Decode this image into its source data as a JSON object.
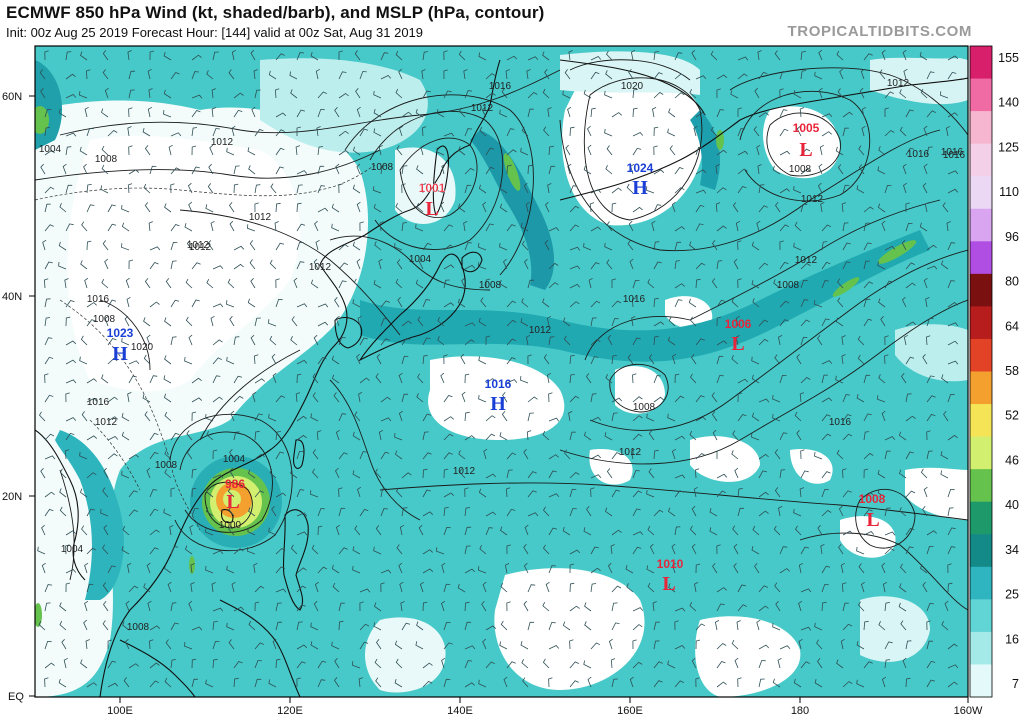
{
  "header": {
    "title": "ECMWF 850 hPa Wind (kt, shaded/barb), and MSLP (hPa, contour)",
    "subtitle": "Init: 00z Aug 25 2019   Forecast Hour: [144]   valid at 00z Sat, Aug 31 2019",
    "brand": "TROPICALTIDBITS.COM"
  },
  "axes": {
    "lat_labels": [
      "60N",
      "40N",
      "20N",
      "EQ"
    ],
    "lon_labels": [
      "100E",
      "120E",
      "140E",
      "160E",
      "180",
      "160W"
    ]
  },
  "colorbar": {
    "labels": [
      "155",
      "140",
      "125",
      "110",
      "96",
      "80",
      "64",
      "58",
      "52",
      "46",
      "40",
      "34",
      "25",
      "16",
      "7"
    ],
    "colors": [
      "#d81f6b",
      "#f06aa4",
      "#f7b6cf",
      "#f3d0e8",
      "#ead8f5",
      "#d9a4f0",
      "#b04ee3",
      "#7a1010",
      "#b81d1d",
      "#e24326",
      "#f3a02e",
      "#f6e457",
      "#d2ef6f",
      "#64c24d",
      "#1e9a6a",
      "#138a88",
      "#2fb5c0",
      "#61d4d6",
      "#a3eae9",
      "#e4fafa"
    ]
  },
  "systems": [
    {
      "type": "L",
      "value": "1001",
      "color": "#e8253a"
    },
    {
      "type": "H",
      "value": "1024",
      "color": "#1a3fd6"
    },
    {
      "type": "L",
      "value": "1005",
      "color": "#e8253a"
    },
    {
      "type": "H",
      "value": "1023",
      "color": "#1a3fd6"
    },
    {
      "type": "L",
      "value": "1006",
      "color": "#e8253a"
    },
    {
      "type": "H",
      "value": "1016",
      "color": "#1a3fd6"
    },
    {
      "type": "L",
      "value": "986",
      "color": "#e8253a"
    },
    {
      "type": "L",
      "value": "1008",
      "color": "#e8253a"
    },
    {
      "type": "L",
      "value": "1010",
      "color": "#e8253a"
    }
  ],
  "contour_labels": [
    "1016",
    "1012",
    "1020",
    "1012",
    "1004",
    "1008",
    "1012",
    "1012",
    "1012",
    "1004",
    "1008",
    "1008",
    "1012",
    "1016",
    "1008",
    "1016",
    "1020",
    "1012",
    "1016",
    "1012",
    "1012",
    "1008",
    "1008",
    "1012",
    "1012",
    "1004",
    "1008",
    "1016",
    "1012",
    "1016",
    "1008",
    "1000",
    "1004",
    "1008",
    "1012",
    "1016",
    "1016"
  ]
}
